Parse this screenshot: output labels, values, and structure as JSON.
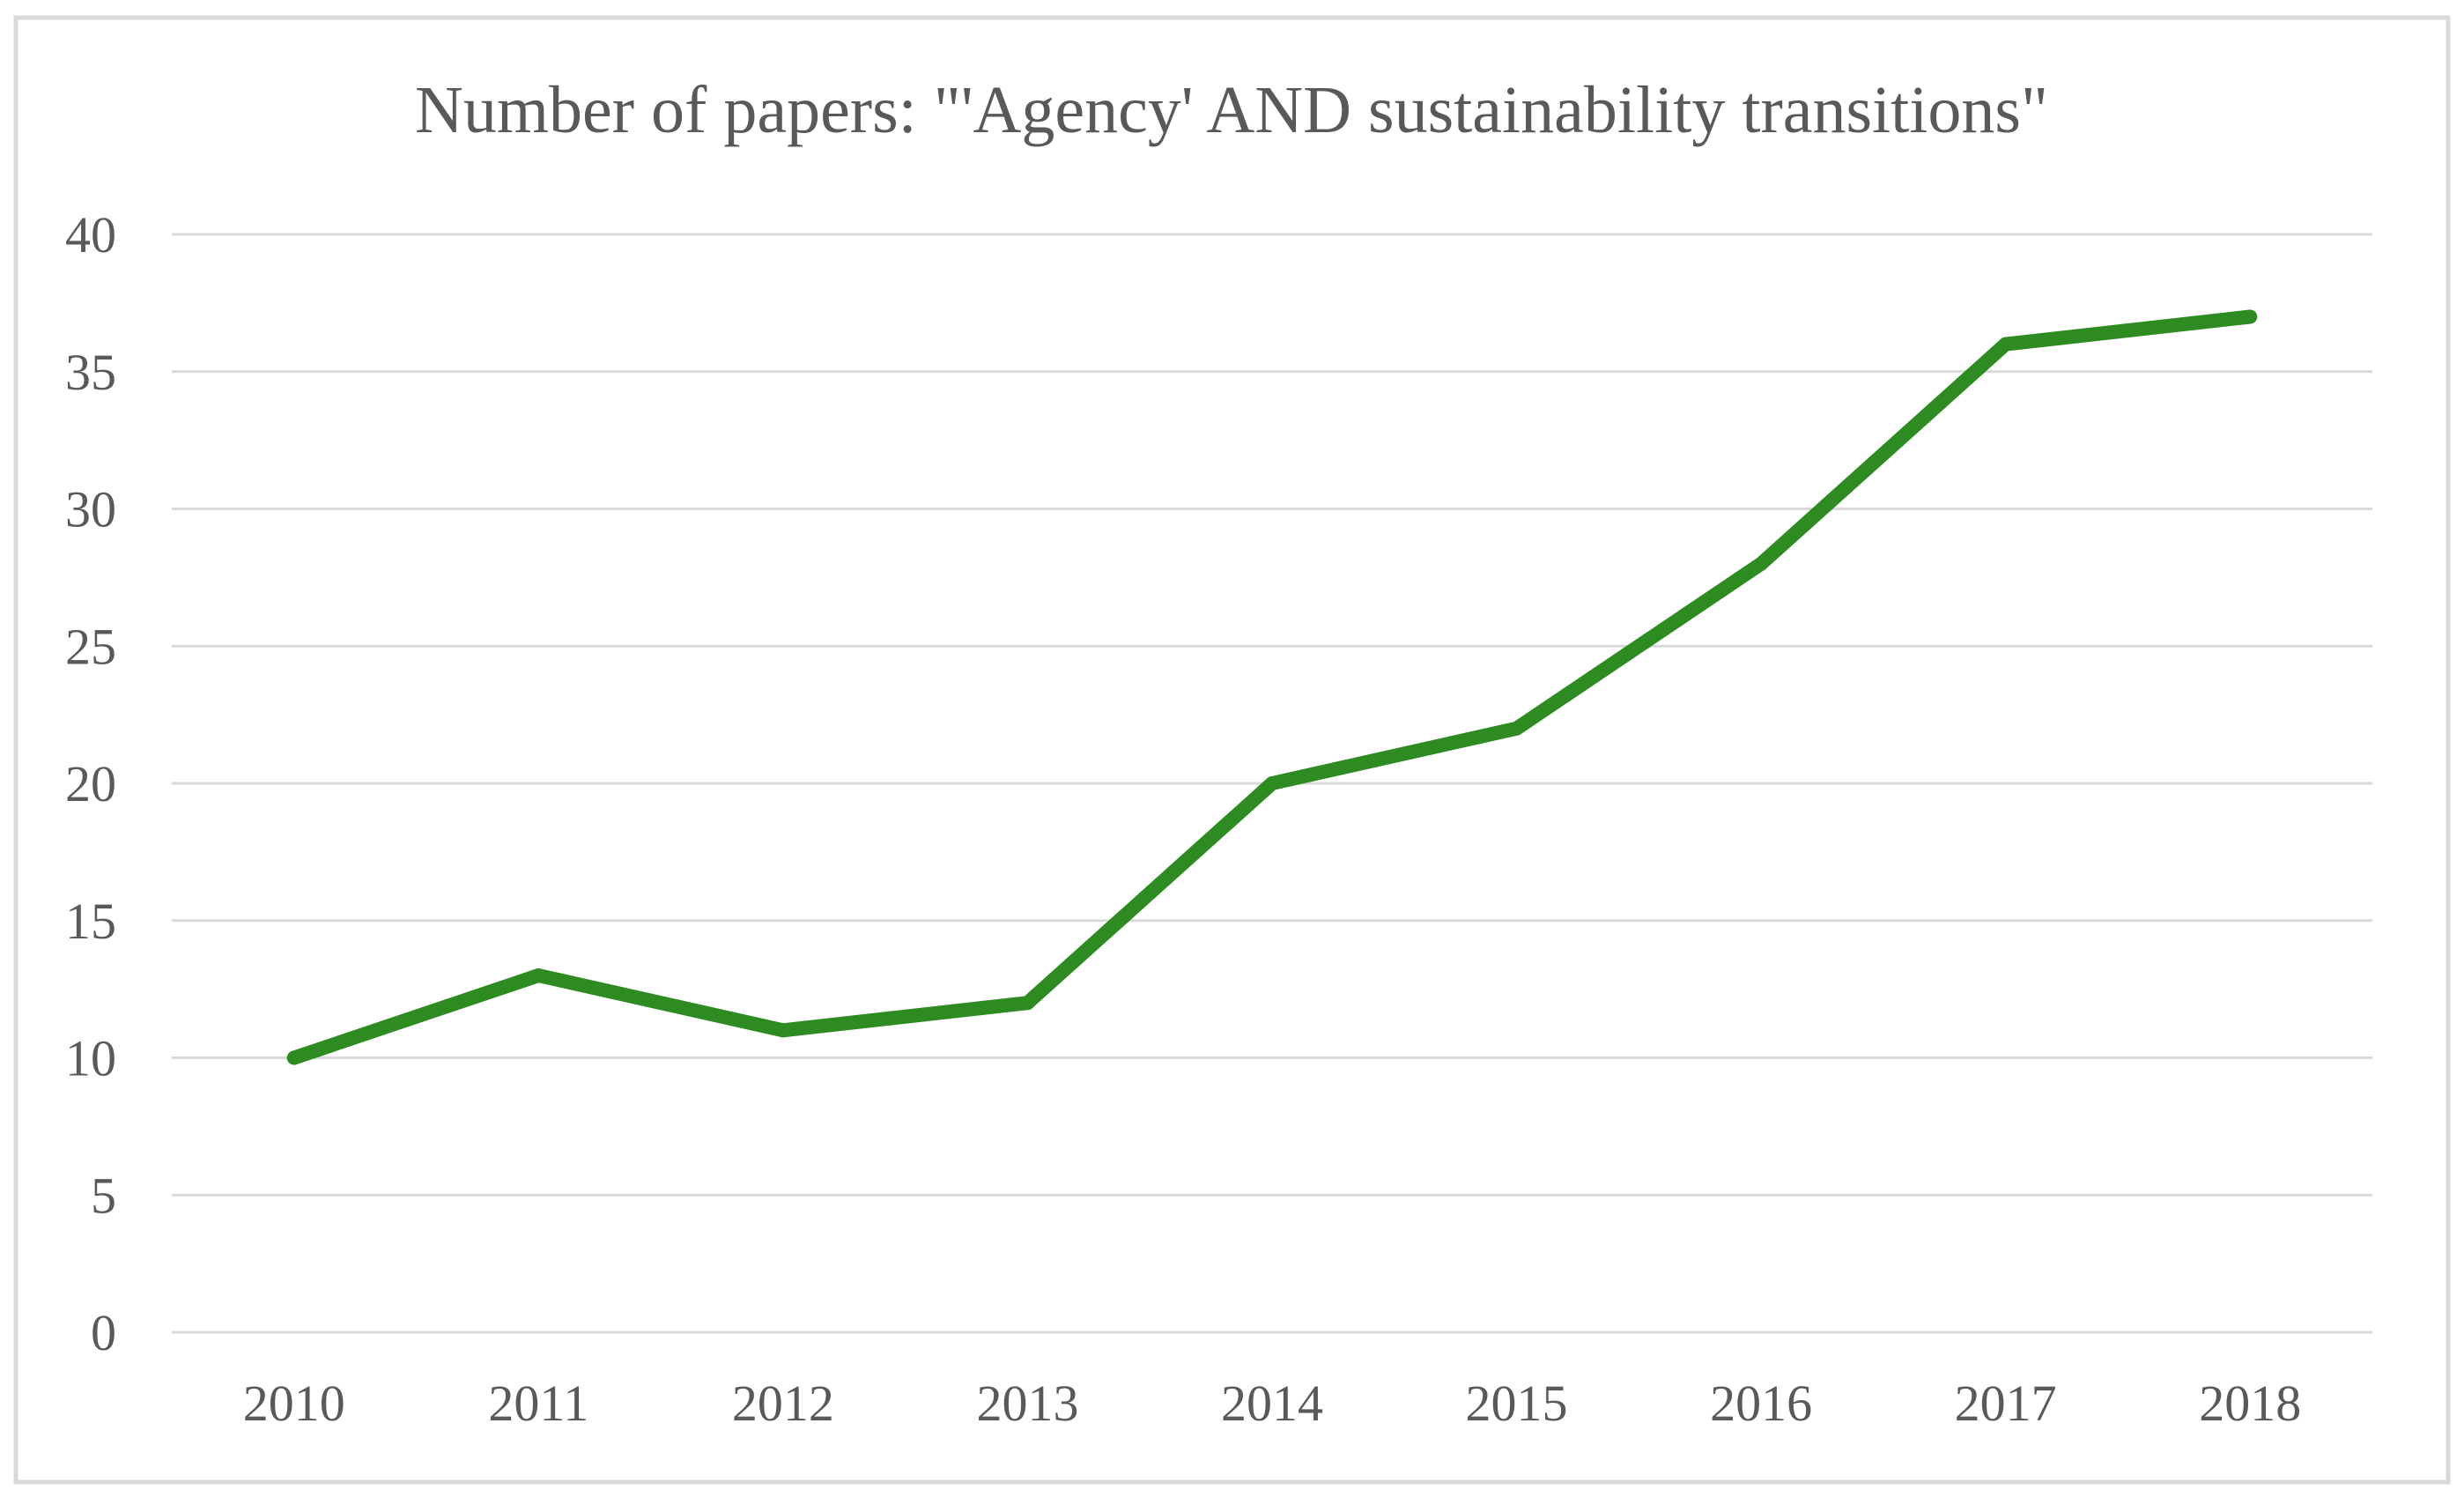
{
  "chart_data": {
    "type": "line",
    "title": "Number of papers: \"'Agency' AND  sustainability transitions\"",
    "xlabel": "",
    "ylabel": "",
    "categories": [
      "2010",
      "2011",
      "2012",
      "2013",
      "2014",
      "2015",
      "2016",
      "2017",
      "2018"
    ],
    "series": [
      {
        "values": [
          10,
          13,
          11,
          12,
          20,
          22,
          28,
          36,
          37
        ],
        "color": "#2e8b22"
      }
    ],
    "ylim": [
      0,
      40
    ],
    "yticks": [
      0,
      5,
      10,
      15,
      20,
      25,
      30,
      35,
      40
    ],
    "grid": true,
    "legend": "none"
  }
}
